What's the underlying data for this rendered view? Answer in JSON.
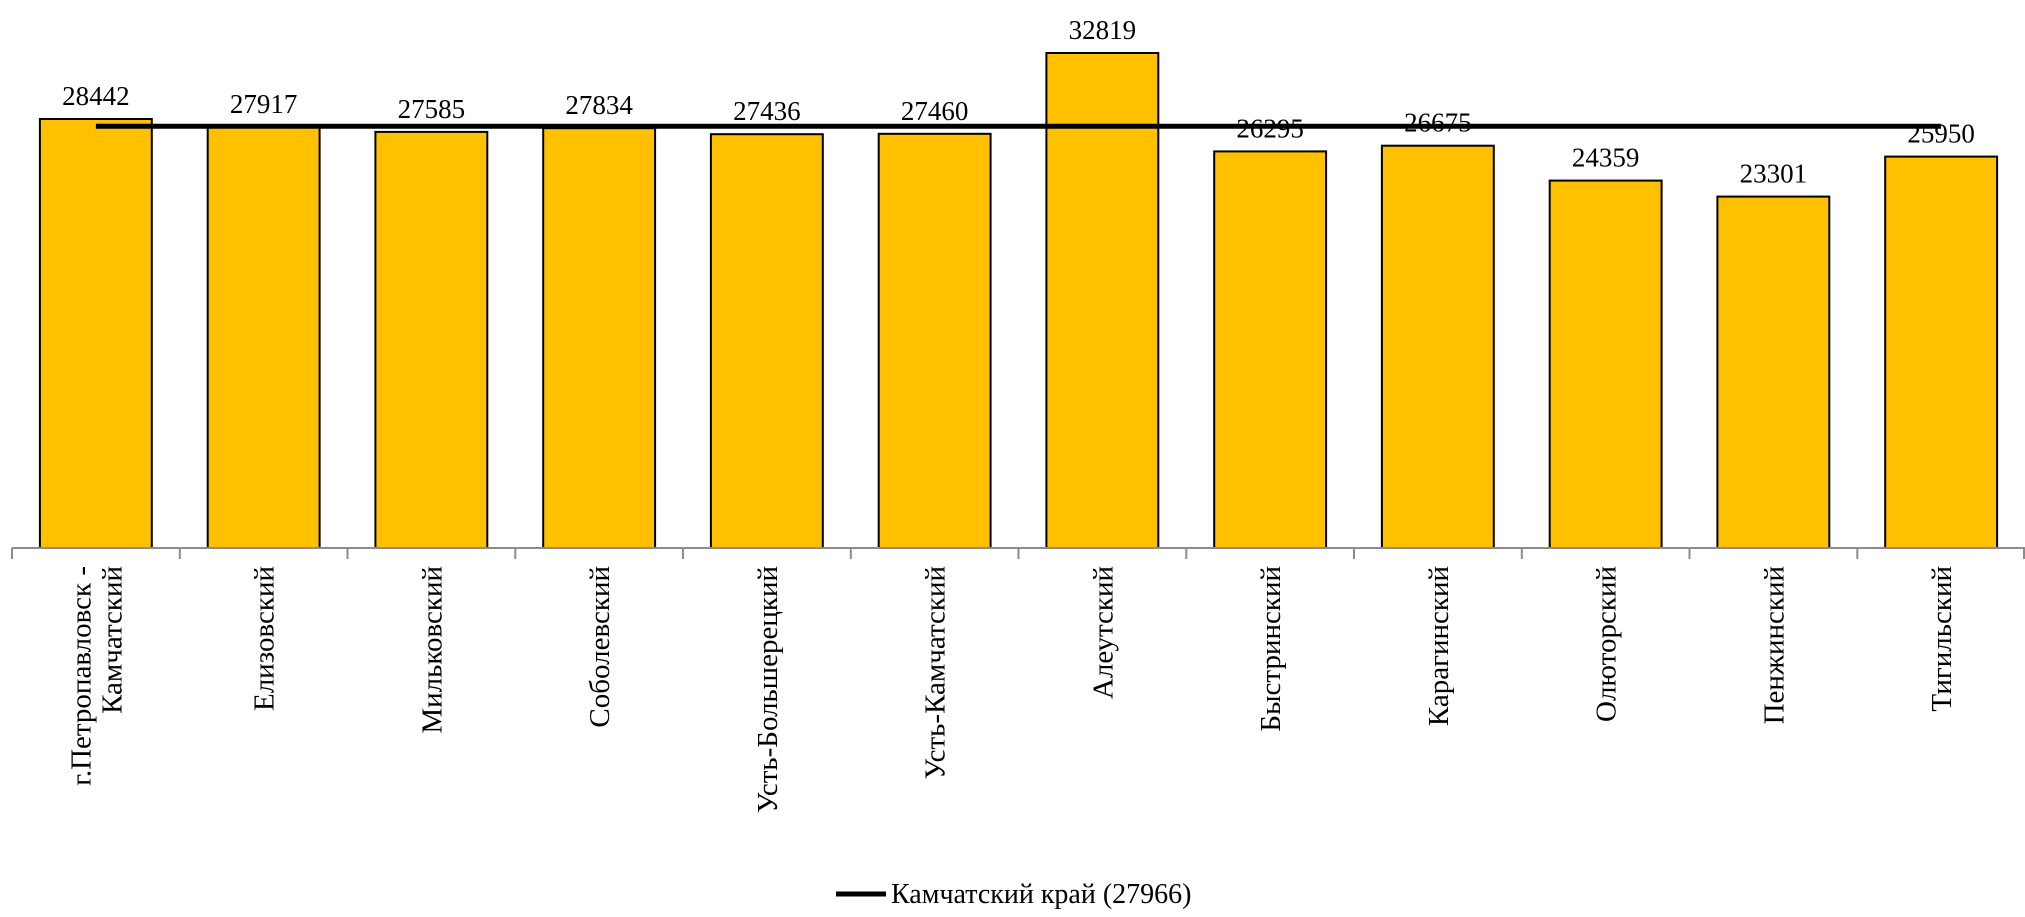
{
  "chart_data": {
    "type": "bar",
    "title": "",
    "xlabel": "",
    "ylabel": "",
    "ylim": [
      0,
      33000
    ],
    "grid": false,
    "legend_position": "bottom",
    "categories": [
      "г.Петропавловск -\nКамчатский",
      "Елизовский",
      "Мильковский",
      "Соболевский",
      "Усть-Большерецкий",
      "Усть-Камчатский",
      "Алеутский",
      "Быстринский",
      "Карагинский",
      "Олюторский",
      "Пенжинский",
      "Тигильский"
    ],
    "series": [
      {
        "values": [
          28442,
          27917,
          27585,
          27834,
          27436,
          27460,
          32819,
          26295,
          26675,
          24359,
          23301,
          25950
        ],
        "color": "#FFC000"
      }
    ],
    "reference_line": {
      "name": "Камчатский край (27966)",
      "value": 27966,
      "color": "#000000"
    }
  }
}
